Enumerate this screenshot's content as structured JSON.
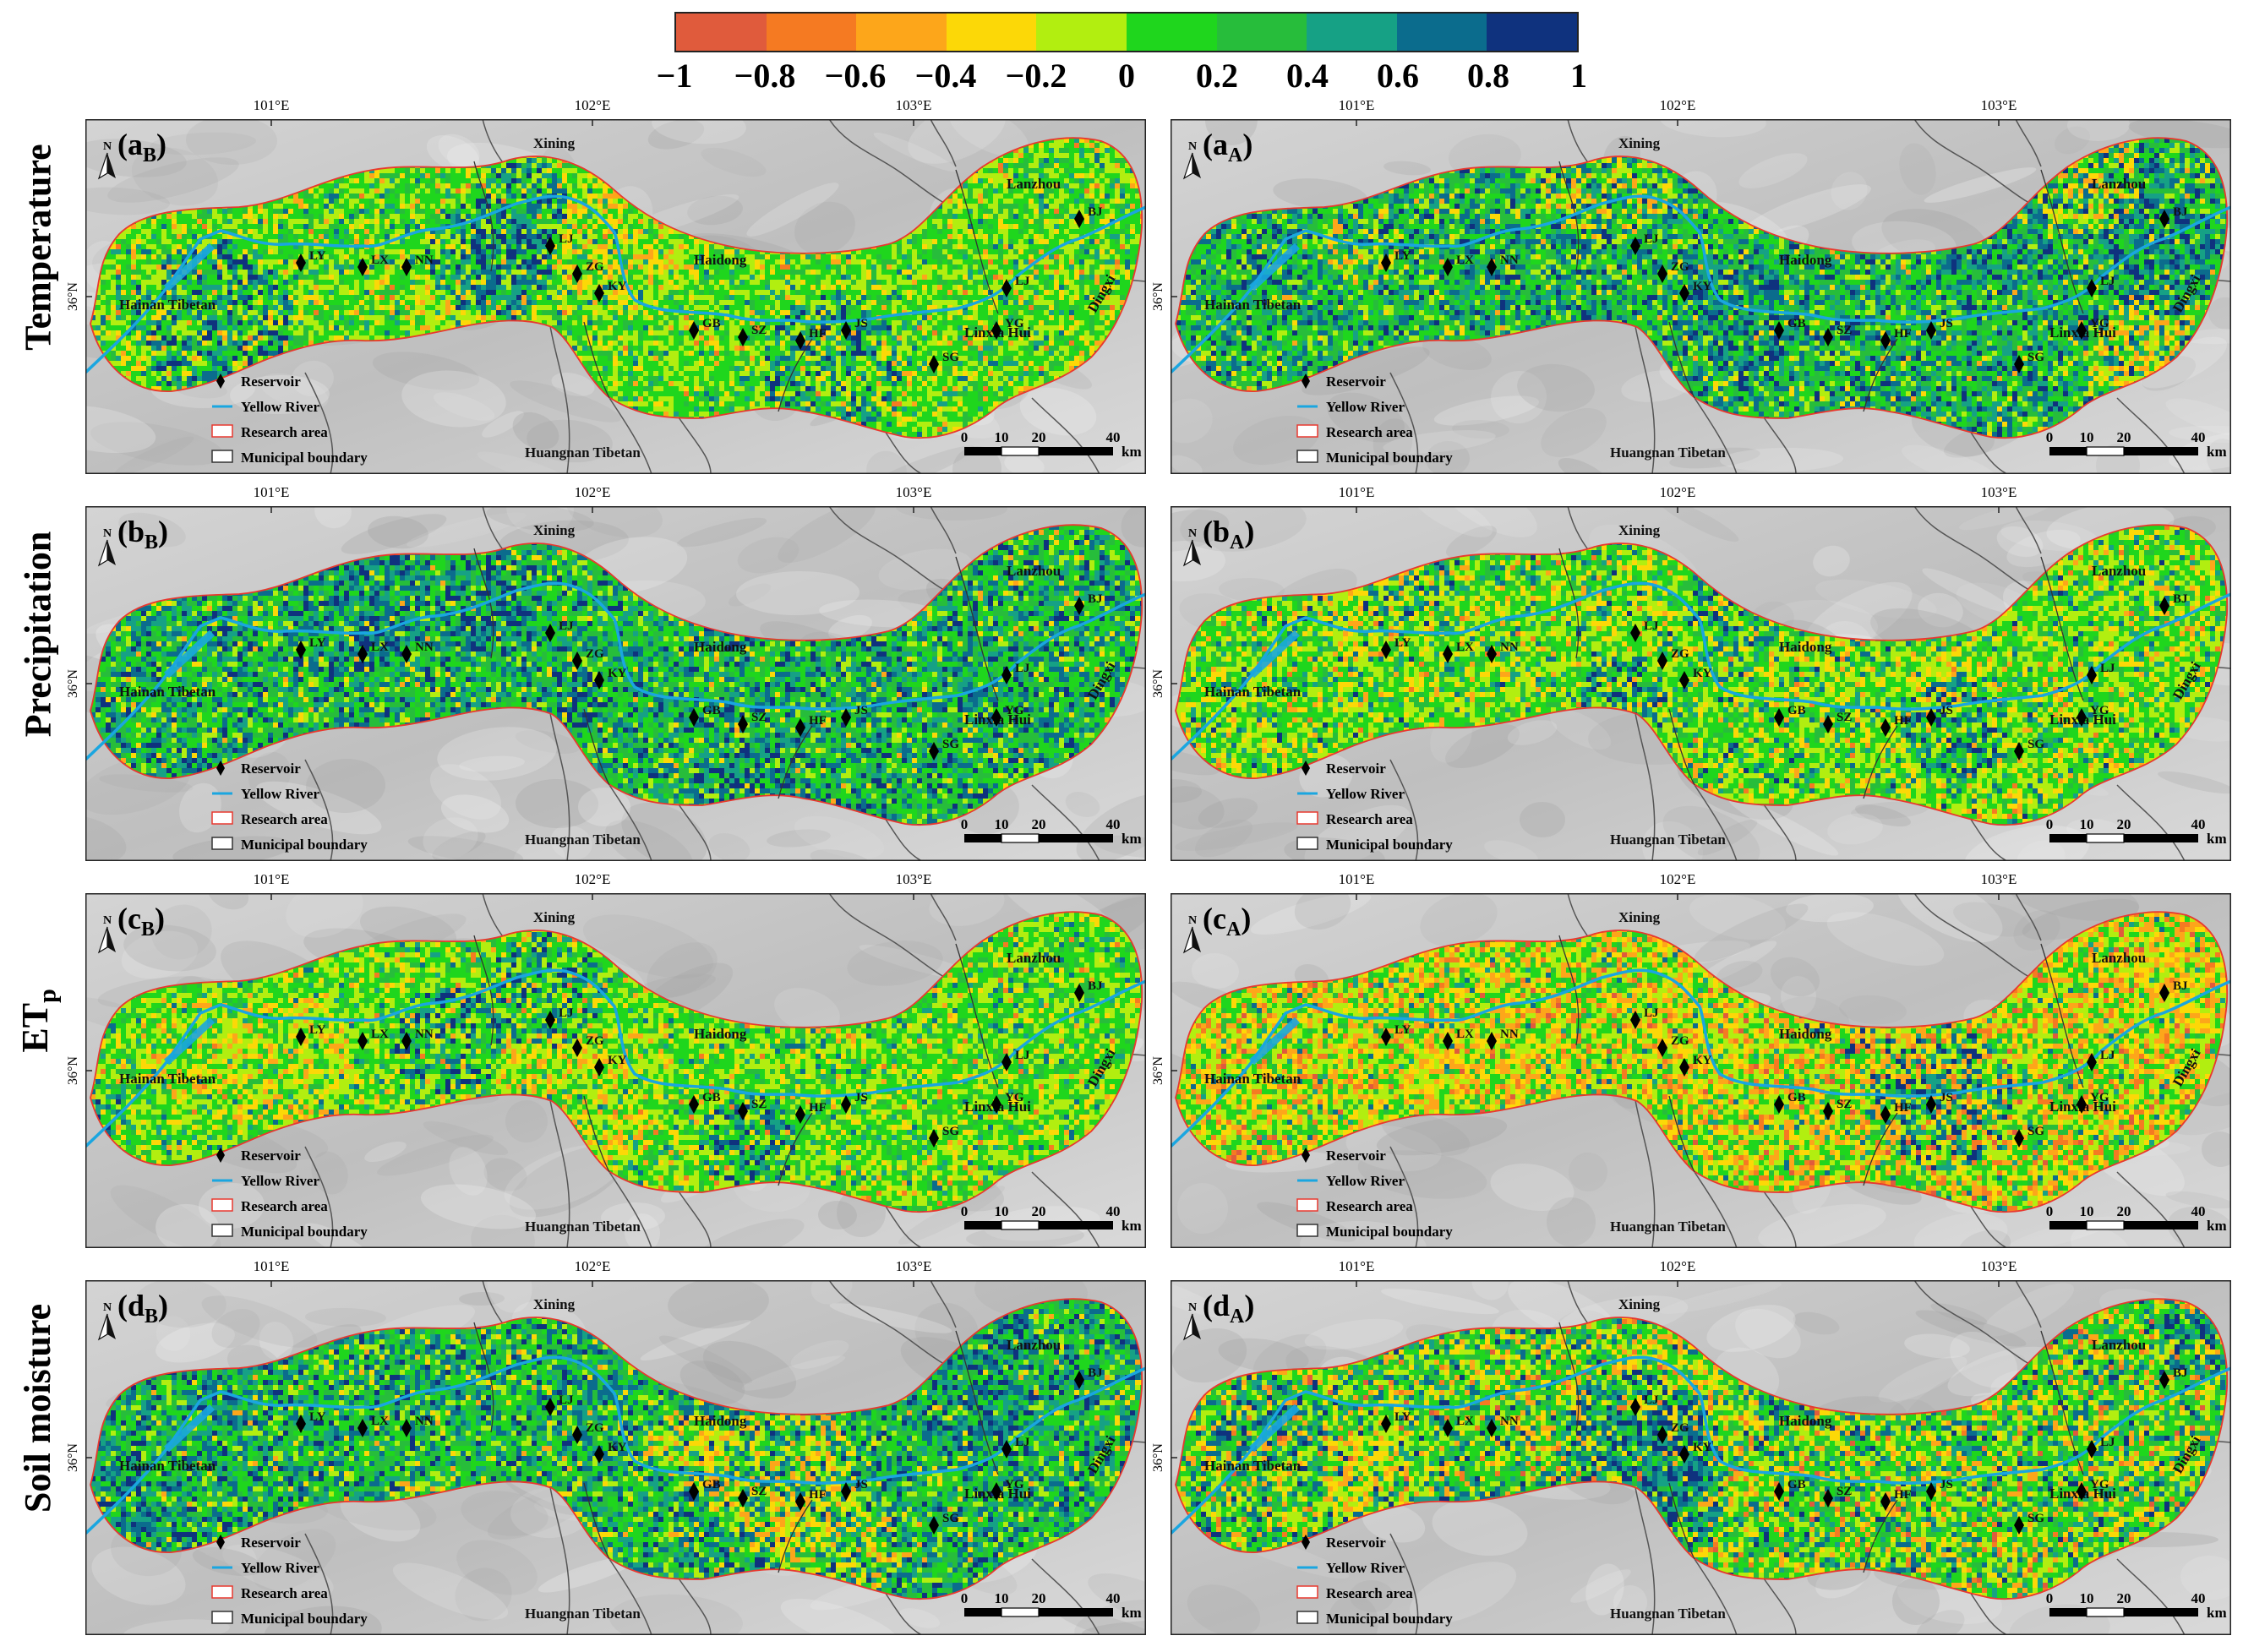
{
  "colorbar": {
    "colors": [
      "#e05b3c",
      "#f57a22",
      "#fda61a",
      "#fcd807",
      "#b2ee10",
      "#1fd61d",
      "#27bd3b",
      "#16a185",
      "#0b6c8d",
      "#0f327e"
    ],
    "ticks": [
      "−1",
      "−0.8",
      "−0.6",
      "−0.4",
      "−0.2",
      "0",
      "0.2",
      "0.4",
      "0.6",
      "0.8",
      "1"
    ]
  },
  "row_labels": [
    "Temperature",
    "Precipitation",
    "ET",
    "Soil moisture"
  ],
  "row_label_sub": "p",
  "panels": [
    {
      "label_main": "(a",
      "label_sub": "B",
      "label_close": ")",
      "mode": 0,
      "variant": 0
    },
    {
      "label_main": "(a",
      "label_sub": "A",
      "label_close": ")",
      "mode": 1,
      "variant": 0
    },
    {
      "label_main": "(b",
      "label_sub": "B",
      "label_close": ")",
      "mode": 1,
      "variant": 1
    },
    {
      "label_main": "(b",
      "label_sub": "A",
      "label_close": ")",
      "mode": 2,
      "variant": 1
    },
    {
      "label_main": "(c",
      "label_sub": "B",
      "label_close": ")",
      "mode": 0,
      "variant": 2
    },
    {
      "label_main": "(c",
      "label_sub": "A",
      "label_close": ")",
      "mode": 3,
      "variant": 2
    },
    {
      "label_main": "(d",
      "label_sub": "B",
      "label_close": ")",
      "mode": 1,
      "variant": 3
    },
    {
      "label_main": "(d",
      "label_sub": "A",
      "label_close": ")",
      "mode": 4,
      "variant": 3
    }
  ],
  "lon_ticks": [
    "101°E",
    "102°E",
    "103°E"
  ],
  "lat_tick": "36°N",
  "north": "N",
  "regions": [
    "Xining",
    "Haidong",
    "Hainan Tibetan",
    "Huangnan Tibetan",
    "Lanzhou",
    "Linxia Hui",
    "Dingxi"
  ],
  "reservoirs": [
    "LY",
    "LX",
    "NN",
    "LJ",
    "ZG",
    "KY",
    "GB",
    "SZ",
    "HF",
    "JS",
    "SG",
    "YG",
    "LJ",
    "BJ"
  ],
  "legend": [
    "Reservoir",
    "Yellow River",
    "Research area",
    "Municipal boundary"
  ],
  "scalebar": {
    "ticks": [
      "0",
      "10",
      "20",
      "40"
    ],
    "unit": "km"
  }
}
